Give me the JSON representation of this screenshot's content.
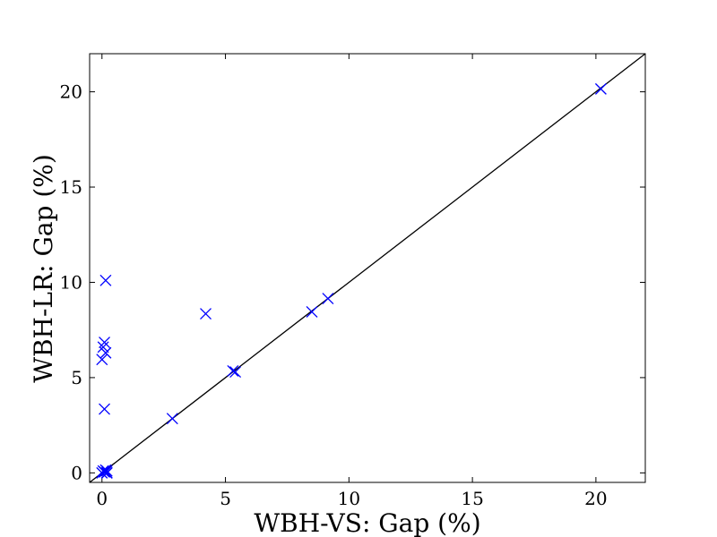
{
  "chart_data": {
    "type": "scatter",
    "title": "",
    "xlabel": "WBH-VS: Gap (%)",
    "ylabel": "WBH-LR: Gap (%)",
    "xlim": [
      -0.5,
      22
    ],
    "ylim": [
      -0.5,
      22
    ],
    "xticks": [
      0,
      5,
      10,
      15,
      20
    ],
    "yticks": [
      0,
      5,
      10,
      15,
      20
    ],
    "x_tick_labels": [
      "0",
      "5",
      "10",
      "15",
      "20"
    ],
    "y_tick_labels": [
      "0",
      "5",
      "10",
      "15",
      "20"
    ],
    "grid": false,
    "legend": "none",
    "marker": "x",
    "colors": {
      "points": "#0000ff",
      "reference_line": "#000000",
      "axes": "#000000"
    },
    "reference_line": {
      "from": [
        -0.5,
        -0.5
      ],
      "to": [
        22,
        22
      ]
    },
    "series": [
      {
        "x": [
          0.0,
          0.05,
          0.1,
          0.15,
          0.2,
          0.1,
          0.2,
          0.0,
          0.15,
          0.05,
          0.1,
          0.15,
          0.2,
          0.1,
          2.85,
          4.2,
          5.3,
          5.4,
          8.5,
          9.15,
          20.2
        ],
        "y": [
          0.0,
          0.1,
          0.05,
          0.15,
          0.0,
          3.35,
          0.0,
          5.95,
          6.3,
          6.6,
          6.85,
          10.1,
          0.1,
          0.05,
          2.85,
          8.35,
          5.35,
          5.3,
          8.45,
          9.15,
          20.15
        ]
      }
    ]
  }
}
